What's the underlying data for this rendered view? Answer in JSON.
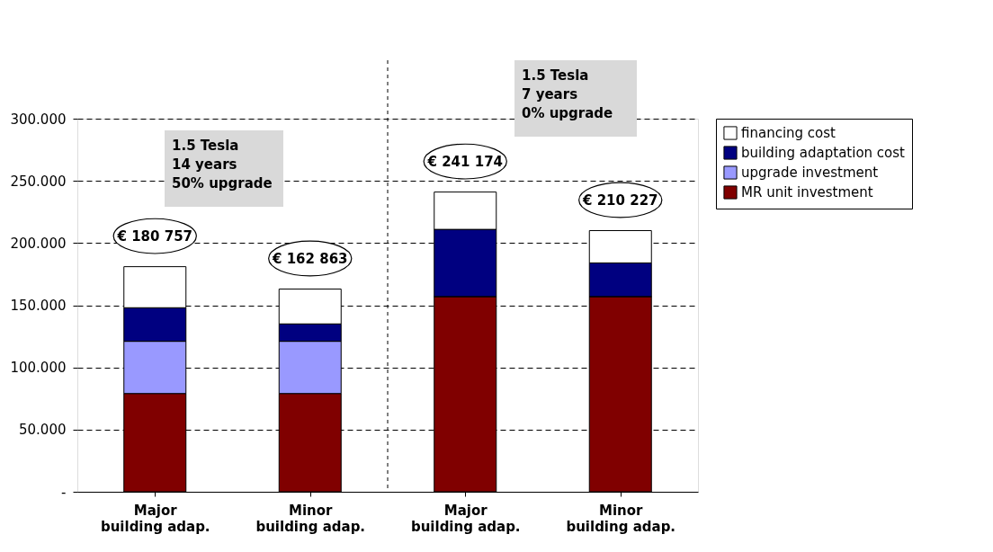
{
  "chart_data": {
    "type": "bar",
    "stacked": true,
    "categories": [
      "Major\nbuilding adap.",
      "Minor\nbuilding adap.",
      "Major\nbuilding adap.",
      "Minor\nbuilding adap."
    ],
    "series": [
      {
        "name": "MR unit investment",
        "color": "#800000",
        "values": [
          79,
          79,
          157,
          157
        ]
      },
      {
        "name": "upgrade investment",
        "color": "#9999ff",
        "values": [
          42,
          42,
          0,
          0
        ]
      },
      {
        "name": "building adaptation cost",
        "color": "#000080",
        "values": [
          27,
          14,
          54,
          27
        ]
      },
      {
        "name": "financing cost",
        "color": "#ffffff",
        "values": [
          33,
          28,
          30,
          26
        ]
      }
    ],
    "ylim": [
      0,
      300
    ],
    "yticks": [
      {
        "value": 0,
        "label": "-"
      },
      {
        "value": 50,
        "label": "50.000"
      },
      {
        "value": 100,
        "label": "100.000"
      },
      {
        "value": 150,
        "label": "150.000"
      },
      {
        "value": 200,
        "label": "200.000"
      },
      {
        "value": 250,
        "label": "250.000"
      },
      {
        "value": 300,
        "label": "300.000"
      }
    ],
    "grid": "y",
    "legend": "right",
    "annotations": [
      "1.5 Tesla\n14 years\n50% upgrade",
      "1.5 Tesla\n7 years\n0% upgrade",
      "€ 180 757",
      "€ 162 863",
      "€ 241 174",
      "€ 210 227"
    ]
  }
}
